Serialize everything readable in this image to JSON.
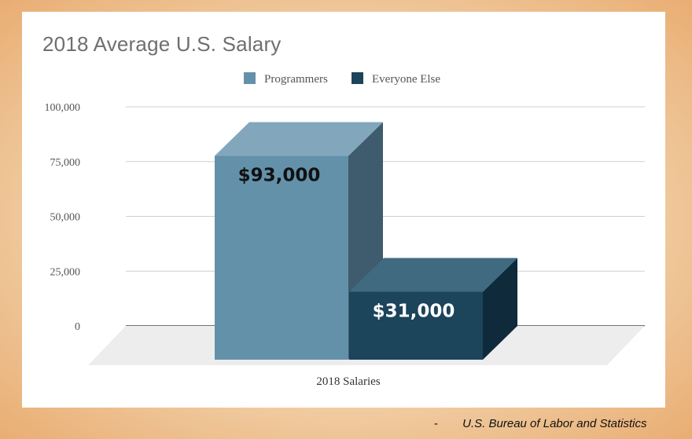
{
  "chart_data": {
    "type": "bar",
    "title": "2018 Average U.S. Salary",
    "categories": [
      "2018 Salaries"
    ],
    "series": [
      {
        "name": "Programmers",
        "values": [
          93000
        ],
        "data_label": "$93,000",
        "color": "#6391aa",
        "top_color": "#82a7bd",
        "side_color": "#3f5b6e",
        "label_color": "#111111"
      },
      {
        "name": "Everyone Else",
        "values": [
          31000
        ],
        "data_label": "$31,000",
        "color": "#1c445b",
        "top_color": "#406a80",
        "side_color": "#0f2a3b",
        "label_color": "#ffffff"
      }
    ],
    "xlabel": "",
    "ylabel": "",
    "ylim": [
      0,
      100000
    ],
    "yticks": [
      {
        "value": 0,
        "label": "0"
      },
      {
        "value": 25000,
        "label": "25,000"
      },
      {
        "value": 50000,
        "label": "50,000"
      },
      {
        "value": 75000,
        "label": "75,000"
      },
      {
        "value": 100000,
        "label": "100,000"
      }
    ],
    "grid": true,
    "legend_position": "top-center",
    "style": "3d"
  },
  "source": {
    "bullet": "-",
    "text": "U.S. Bureau of Labor and Statistics"
  }
}
